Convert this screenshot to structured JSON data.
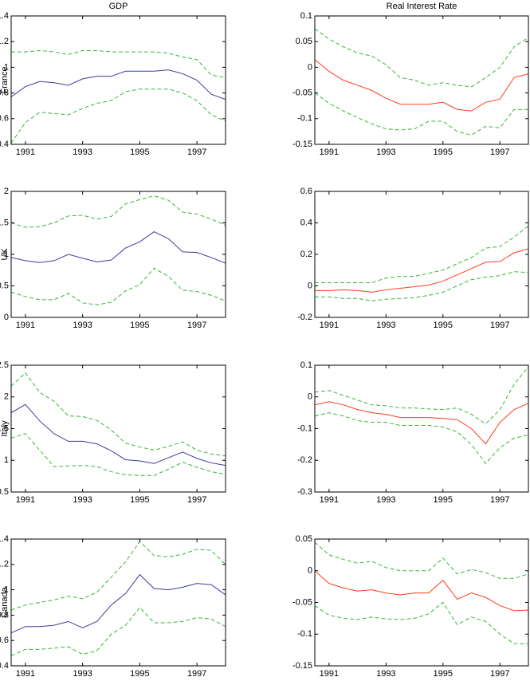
{
  "chart_data": [
    {
      "type": "line",
      "title": "GDP",
      "ylabel": "France",
      "x": [
        1990.5,
        1991,
        1991.5,
        1992,
        1992.5,
        1993,
        1993.5,
        1994,
        1994.5,
        1995,
        1995.5,
        1996,
        1996.5,
        1997,
        1997.5,
        1998
      ],
      "xlim": [
        1990.5,
        1998
      ],
      "xticks": [
        1991,
        1993,
        1995,
        1997
      ],
      "ylim": [
        0.4,
        1.4
      ],
      "yticks": [
        0.4,
        0.6,
        0.8,
        1,
        1.2,
        1.4
      ],
      "series": [
        {
          "color": "#3b3b9e",
          "linestyle": "solid",
          "values": [
            0.77,
            0.85,
            0.89,
            0.88,
            0.86,
            0.91,
            0.93,
            0.93,
            0.97,
            0.97,
            0.97,
            0.98,
            0.95,
            0.9,
            0.79,
            0.75
          ]
        },
        {
          "color": "#3cb43c",
          "linestyle": "dashed",
          "values": [
            1.12,
            1.12,
            1.13,
            1.12,
            1.1,
            1.13,
            1.13,
            1.12,
            1.12,
            1.12,
            1.12,
            1.11,
            1.08,
            1.06,
            0.94,
            0.92
          ]
        },
        {
          "color": "#3cb43c",
          "linestyle": "dashed",
          "values": [
            0.41,
            0.57,
            0.65,
            0.64,
            0.63,
            0.68,
            0.72,
            0.74,
            0.81,
            0.83,
            0.83,
            0.83,
            0.8,
            0.74,
            0.63,
            0.58
          ]
        }
      ]
    },
    {
      "type": "line",
      "title": "Real Interest Rate",
      "x": [
        1990.5,
        1991,
        1991.5,
        1992,
        1992.5,
        1993,
        1993.5,
        1994,
        1994.5,
        1995,
        1995.5,
        1996,
        1996.5,
        1997,
        1997.5,
        1998
      ],
      "xlim": [
        1990.5,
        1998
      ],
      "xticks": [
        1991,
        1993,
        1995,
        1997
      ],
      "ylim": [
        -0.15,
        0.1
      ],
      "yticks": [
        -0.15,
        -0.1,
        -0.05,
        0,
        0.05,
        0.1
      ],
      "series": [
        {
          "color": "#ff3b1f",
          "linestyle": "solid",
          "values": [
            0.015,
            -0.008,
            -0.025,
            -0.035,
            -0.045,
            -0.06,
            -0.072,
            -0.072,
            -0.072,
            -0.068,
            -0.082,
            -0.085,
            -0.068,
            -0.062,
            -0.02,
            -0.013
          ]
        },
        {
          "color": "#3cb43c",
          "linestyle": "dashed",
          "values": [
            0.075,
            0.055,
            0.04,
            0.028,
            0.022,
            0.005,
            -0.02,
            -0.025,
            -0.035,
            -0.03,
            -0.035,
            -0.038,
            -0.02,
            0.0,
            0.04,
            0.058
          ]
        },
        {
          "color": "#3cb43c",
          "linestyle": "dashed",
          "values": [
            -0.05,
            -0.07,
            -0.085,
            -0.098,
            -0.11,
            -0.12,
            -0.122,
            -0.12,
            -0.105,
            -0.105,
            -0.125,
            -0.132,
            -0.115,
            -0.118,
            -0.082,
            -0.082
          ]
        }
      ]
    },
    {
      "type": "line",
      "ylabel": "UK",
      "x": [
        1990.5,
        1991,
        1991.5,
        1992,
        1992.5,
        1993,
        1993.5,
        1994,
        1994.5,
        1995,
        1995.5,
        1996,
        1996.5,
        1997,
        1997.5,
        1998
      ],
      "xlim": [
        1990.5,
        1998
      ],
      "xticks": [
        1991,
        1993,
        1995,
        1997
      ],
      "ylim": [
        0,
        2
      ],
      "yticks": [
        0,
        0.5,
        1,
        1.5,
        2
      ],
      "series": [
        {
          "color": "#3b3b9e",
          "linestyle": "solid",
          "values": [
            0.95,
            0.9,
            0.87,
            0.9,
            1.0,
            0.94,
            0.88,
            0.91,
            1.1,
            1.2,
            1.36,
            1.25,
            1.04,
            1.03,
            0.95,
            0.86
          ]
        },
        {
          "color": "#3cb43c",
          "linestyle": "dashed",
          "values": [
            1.5,
            1.43,
            1.44,
            1.5,
            1.61,
            1.62,
            1.56,
            1.6,
            1.8,
            1.87,
            1.93,
            1.86,
            1.67,
            1.64,
            1.56,
            1.46
          ]
        },
        {
          "color": "#3cb43c",
          "linestyle": "dashed",
          "values": [
            0.4,
            0.33,
            0.28,
            0.28,
            0.38,
            0.23,
            0.2,
            0.24,
            0.42,
            0.52,
            0.78,
            0.65,
            0.43,
            0.41,
            0.35,
            0.26
          ]
        }
      ]
    },
    {
      "type": "line",
      "x": [
        1990.5,
        1991,
        1991.5,
        1992,
        1992.5,
        1993,
        1993.5,
        1994,
        1994.5,
        1995,
        1995.5,
        1996,
        1996.5,
        1997,
        1997.5,
        1998
      ],
      "xlim": [
        1990.5,
        1998
      ],
      "xticks": [
        1991,
        1993,
        1995,
        1997
      ],
      "ylim": [
        -0.2,
        0.6
      ],
      "yticks": [
        -0.2,
        0,
        0.2,
        0.4,
        0.6
      ],
      "series": [
        {
          "color": "#ff3b1f",
          "linestyle": "solid",
          "values": [
            -0.03,
            -0.03,
            -0.025,
            -0.03,
            -0.04,
            -0.025,
            -0.015,
            -0.005,
            0.005,
            0.03,
            0.07,
            0.11,
            0.15,
            0.155,
            0.21,
            0.235
          ]
        },
        {
          "color": "#3cb43c",
          "linestyle": "dashed",
          "values": [
            0.02,
            0.02,
            0.02,
            0.02,
            0.02,
            0.05,
            0.06,
            0.06,
            0.08,
            0.1,
            0.14,
            0.18,
            0.24,
            0.25,
            0.31,
            0.38
          ]
        },
        {
          "color": "#3cb43c",
          "linestyle": "dashed",
          "values": [
            -0.07,
            -0.07,
            -0.08,
            -0.08,
            -0.095,
            -0.085,
            -0.08,
            -0.075,
            -0.06,
            -0.04,
            0.0,
            0.04,
            0.055,
            0.065,
            0.09,
            0.085
          ]
        }
      ]
    },
    {
      "type": "line",
      "ylabel": "Italy",
      "x": [
        1990.5,
        1991,
        1991.5,
        1992,
        1992.5,
        1993,
        1993.5,
        1994,
        1994.5,
        1995,
        1995.5,
        1996,
        1996.5,
        1997,
        1997.5,
        1998
      ],
      "xlim": [
        1990.5,
        1998
      ],
      "xticks": [
        1991,
        1993,
        1995,
        1997
      ],
      "ylim": [
        0.5,
        2.5
      ],
      "yticks": [
        0.5,
        1,
        1.5,
        2,
        2.5
      ],
      "series": [
        {
          "color": "#3b3b9e",
          "linestyle": "solid",
          "values": [
            1.75,
            1.88,
            1.62,
            1.42,
            1.3,
            1.3,
            1.26,
            1.15,
            1.01,
            0.99,
            0.95,
            1.04,
            1.13,
            1.03,
            0.96,
            0.92
          ]
        },
        {
          "color": "#3cb43c",
          "linestyle": "dashed",
          "values": [
            2.17,
            2.38,
            2.07,
            1.93,
            1.7,
            1.69,
            1.63,
            1.48,
            1.27,
            1.21,
            1.16,
            1.22,
            1.29,
            1.16,
            1.1,
            1.07
          ]
        },
        {
          "color": "#3cb43c",
          "linestyle": "dashed",
          "values": [
            1.35,
            1.42,
            1.16,
            0.9,
            0.91,
            0.92,
            0.9,
            0.82,
            0.77,
            0.76,
            0.76,
            0.86,
            0.97,
            0.89,
            0.82,
            0.78
          ]
        }
      ]
    },
    {
      "type": "line",
      "x": [
        1990.5,
        1991,
        1991.5,
        1992,
        1992.5,
        1993,
        1993.5,
        1994,
        1994.5,
        1995,
        1995.5,
        1996,
        1996.5,
        1997,
        1997.5,
        1998
      ],
      "xlim": [
        1990.5,
        1998
      ],
      "xticks": [
        1991,
        1993,
        1995,
        1997
      ],
      "ylim": [
        -0.3,
        0.1
      ],
      "yticks": [
        -0.3,
        -0.2,
        -0.1,
        0,
        0.1
      ],
      "series": [
        {
          "color": "#ff3b1f",
          "linestyle": "solid",
          "values": [
            -0.025,
            -0.015,
            -0.025,
            -0.04,
            -0.05,
            -0.055,
            -0.065,
            -0.065,
            -0.065,
            -0.068,
            -0.072,
            -0.1,
            -0.148,
            -0.08,
            -0.04,
            -0.02
          ]
        },
        {
          "color": "#3cb43c",
          "linestyle": "dashed",
          "values": [
            0.015,
            0.02,
            0.005,
            -0.01,
            -0.025,
            -0.028,
            -0.035,
            -0.035,
            -0.038,
            -0.04,
            -0.035,
            -0.055,
            -0.085,
            -0.04,
            0.04,
            0.095
          ]
        },
        {
          "color": "#3cb43c",
          "linestyle": "dashed",
          "values": [
            -0.06,
            -0.05,
            -0.06,
            -0.075,
            -0.08,
            -0.08,
            -0.09,
            -0.09,
            -0.09,
            -0.095,
            -0.11,
            -0.15,
            -0.21,
            -0.16,
            -0.13,
            -0.12
          ]
        }
      ]
    },
    {
      "type": "line",
      "ylabel": "Canada",
      "x": [
        1990.5,
        1991,
        1991.5,
        1992,
        1992.5,
        1993,
        1993.5,
        1994,
        1994.5,
        1995,
        1995.5,
        1996,
        1996.5,
        1997,
        1997.5,
        1998
      ],
      "xlim": [
        1990.5,
        1998
      ],
      "xticks": [
        1991,
        1993,
        1995,
        1997
      ],
      "ylim": [
        0.4,
        1.4
      ],
      "yticks": [
        0.4,
        0.6,
        0.8,
        1,
        1.2,
        1.4
      ],
      "series": [
        {
          "color": "#3b3b9e",
          "linestyle": "solid",
          "values": [
            0.66,
            0.71,
            0.71,
            0.72,
            0.75,
            0.7,
            0.75,
            0.88,
            0.97,
            1.12,
            1.01,
            1.0,
            1.02,
            1.05,
            1.04,
            0.96
          ]
        },
        {
          "color": "#3cb43c",
          "linestyle": "dashed",
          "values": [
            0.84,
            0.88,
            0.9,
            0.92,
            0.95,
            0.93,
            0.98,
            1.1,
            1.22,
            1.38,
            1.27,
            1.26,
            1.28,
            1.32,
            1.31,
            1.2
          ]
        },
        {
          "color": "#3cb43c",
          "linestyle": "dashed",
          "values": [
            0.48,
            0.53,
            0.53,
            0.54,
            0.55,
            0.49,
            0.52,
            0.65,
            0.72,
            0.86,
            0.74,
            0.74,
            0.75,
            0.78,
            0.77,
            0.71
          ]
        }
      ]
    },
    {
      "type": "line",
      "x": [
        1990.5,
        1991,
        1991.5,
        1992,
        1992.5,
        1993,
        1993.5,
        1994,
        1994.5,
        1995,
        1995.5,
        1996,
        1996.5,
        1997,
        1997.5,
        1998
      ],
      "xlim": [
        1990.5,
        1998
      ],
      "xticks": [
        1991,
        1993,
        1995,
        1997
      ],
      "ylim": [
        -0.15,
        0.05
      ],
      "yticks": [
        -0.15,
        -0.1,
        -0.05,
        0,
        0.05
      ],
      "series": [
        {
          "color": "#ff3b1f",
          "linestyle": "solid",
          "values": [
            0.0,
            -0.02,
            -0.027,
            -0.032,
            -0.03,
            -0.035,
            -0.038,
            -0.035,
            -0.035,
            -0.015,
            -0.045,
            -0.035,
            -0.042,
            -0.055,
            -0.063,
            -0.062
          ]
        },
        {
          "color": "#3cb43c",
          "linestyle": "dashed",
          "values": [
            0.045,
            0.025,
            0.018,
            0.012,
            0.015,
            0.005,
            0.0,
            0.0,
            0.0,
            0.02,
            -0.005,
            0.002,
            -0.003,
            -0.012,
            -0.012,
            -0.005
          ]
        },
        {
          "color": "#3cb43c",
          "linestyle": "dashed",
          "values": [
            -0.055,
            -0.07,
            -0.075,
            -0.077,
            -0.073,
            -0.076,
            -0.077,
            -0.075,
            -0.068,
            -0.05,
            -0.085,
            -0.073,
            -0.08,
            -0.1,
            -0.115,
            -0.115
          ]
        }
      ]
    }
  ]
}
